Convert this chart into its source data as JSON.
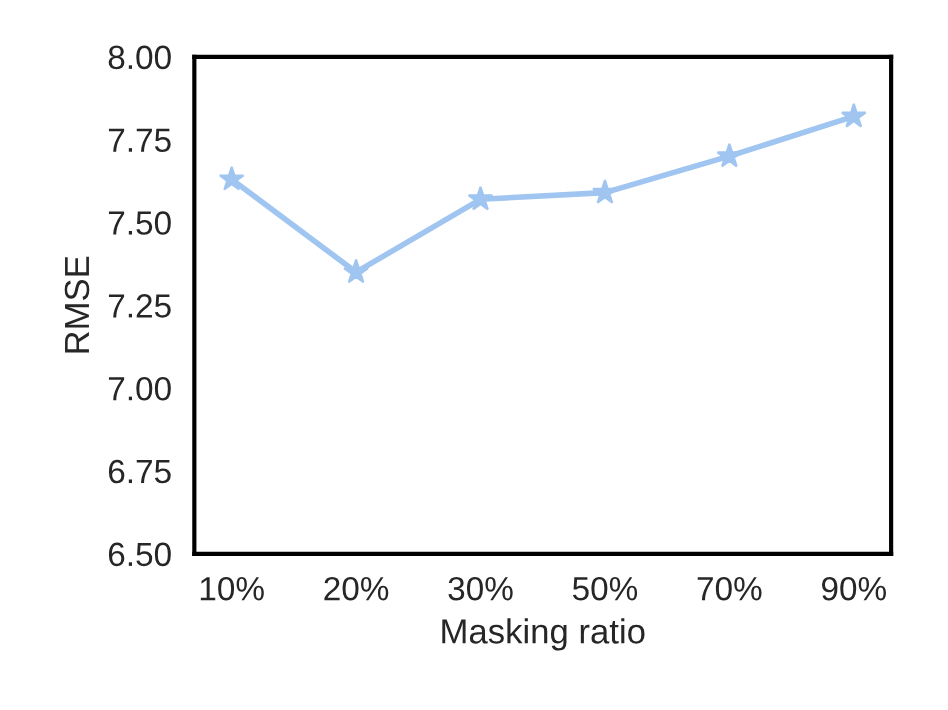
{
  "chart_data": {
    "type": "line",
    "xlabel": "Masking ratio",
    "ylabel": "RMSE",
    "categories": [
      "10%",
      "20%",
      "30%",
      "50%",
      "70%",
      "90%"
    ],
    "series": [
      {
        "color": "#9fc5f0",
        "values": [
          7.63,
          7.35,
          7.57,
          7.59,
          7.7,
          7.82
        ]
      }
    ],
    "ylim": [
      6.5,
      8.0
    ],
    "yticks": [
      {
        "value": 6.5,
        "label": "6.50"
      },
      {
        "value": 6.75,
        "label": "6.75"
      },
      {
        "value": 7.0,
        "label": "7.00"
      },
      {
        "value": 7.25,
        "label": "7.25"
      },
      {
        "value": 7.5,
        "label": "7.50"
      },
      {
        "value": 7.75,
        "label": "7.75"
      },
      {
        "value": 8.0,
        "label": "8.00"
      }
    ],
    "marker": "star",
    "line_style": "solid",
    "grid": false
  }
}
